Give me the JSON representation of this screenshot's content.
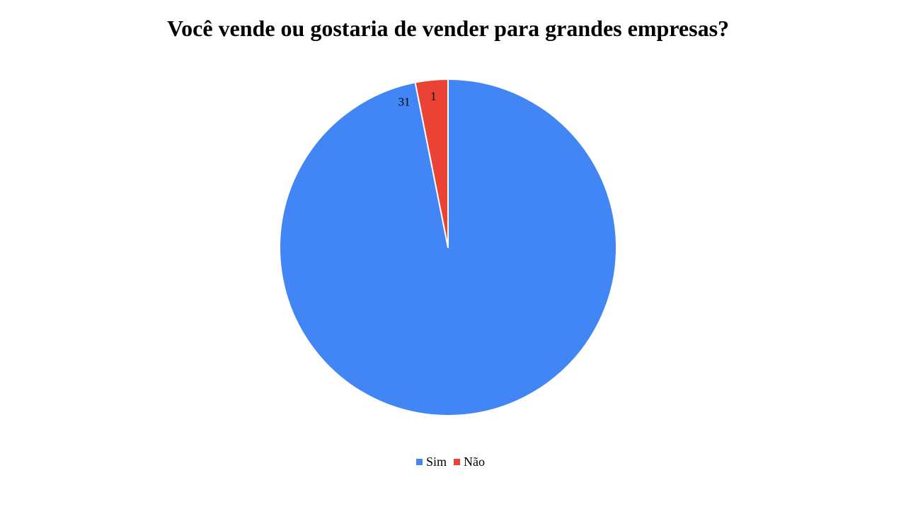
{
  "chart_data": {
    "type": "pie",
    "title": "Você vende ou gostaria de vender para grandes empresas?",
    "categories": [
      "Sim",
      "Não"
    ],
    "values": [
      31,
      1
    ],
    "data_labels": [
      "31",
      "1"
    ],
    "colors": [
      "#4285f4",
      "#ea4335"
    ],
    "legend_position": "bottom",
    "start_angle": "12 o'clock",
    "direction": "clockwise"
  }
}
